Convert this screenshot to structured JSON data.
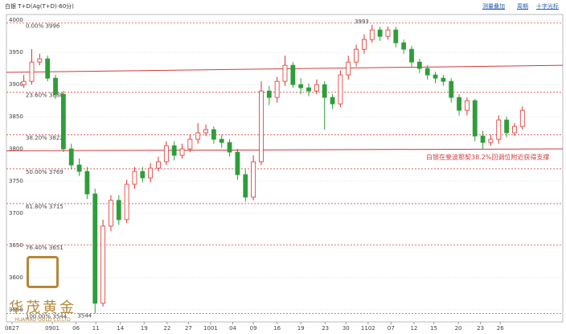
{
  "header": {
    "title": "白银 T+D(Ag(T+D)-60分)",
    "links": [
      "测量叠加",
      "周期",
      "十字光标"
    ]
  },
  "logo": {
    "name": "华茂黄金",
    "subtitle": "HUAMAO GOLD CO.LTD"
  },
  "chart_data": {
    "type": "candlestick",
    "up_color": "#e0312c",
    "down_color": "#2e9e3a",
    "x": [
      0,
      1,
      2,
      3,
      4,
      5,
      6,
      7,
      8,
      9,
      10,
      11,
      12,
      13,
      14,
      15,
      16,
      17,
      18,
      19,
      20,
      21,
      22,
      23,
      24,
      25,
      26,
      27,
      28,
      29,
      30,
      31,
      32,
      33,
      34,
      35,
      36,
      37,
      38,
      39,
      40,
      41,
      42,
      43,
      44,
      45,
      46,
      47,
      48,
      49,
      50,
      51,
      52,
      53,
      54,
      55,
      56,
      57,
      58,
      59,
      60,
      61,
      62,
      63
    ],
    "open": [
      3900,
      3905,
      3935,
      3940,
      3910,
      3885,
      3800,
      3775,
      3765,
      3730,
      3560,
      3680,
      3720,
      3690,
      3745,
      3765,
      3755,
      3770,
      3780,
      3805,
      3790,
      3800,
      3815,
      3825,
      3830,
      3815,
      3810,
      3795,
      3760,
      3725,
      3780,
      3890,
      3880,
      3905,
      3930,
      3900,
      3895,
      3890,
      3900,
      3880,
      3870,
      3915,
      3935,
      3955,
      3970,
      3985,
      3975,
      3985,
      3965,
      3955,
      3935,
      3925,
      3915,
      3910,
      3905,
      3880,
      3860,
      3875,
      3820,
      3810,
      3815,
      3845,
      3825,
      3835
    ],
    "high": [
      3915,
      3955,
      3948,
      3945,
      3915,
      3890,
      3808,
      3785,
      3772,
      3738,
      3690,
      3728,
      3728,
      3752,
      3772,
      3772,
      3778,
      3788,
      3812,
      3812,
      3808,
      3822,
      3840,
      3838,
      3835,
      3822,
      3815,
      3800,
      3768,
      3790,
      3905,
      3898,
      3912,
      3945,
      3935,
      3910,
      3902,
      3908,
      3905,
      3885,
      3922,
      3945,
      3962,
      3978,
      3993,
      3990,
      3990,
      3990,
      3970,
      3960,
      3940,
      3930,
      3920,
      3915,
      3910,
      3885,
      3880,
      3878,
      3828,
      3822,
      3852,
      3850,
      3840,
      3866
    ],
    "low": [
      3895,
      3900,
      3930,
      3905,
      3878,
      3795,
      3768,
      3758,
      3722,
      3544,
      3555,
      3672,
      3682,
      3685,
      3738,
      3748,
      3748,
      3765,
      3775,
      3782,
      3785,
      3795,
      3808,
      3820,
      3808,
      3802,
      3788,
      3752,
      3718,
      3720,
      3775,
      3868,
      3872,
      3898,
      3895,
      3885,
      3882,
      3885,
      3830,
      3862,
      3865,
      3908,
      3928,
      3948,
      3965,
      3968,
      3970,
      3958,
      3948,
      3928,
      3918,
      3908,
      3902,
      3898,
      3872,
      3852,
      3852,
      3812,
      3800,
      3805,
      3808,
      3818,
      3820,
      3830
    ],
    "close": [
      3905,
      3935,
      3940,
      3910,
      3885,
      3800,
      3775,
      3765,
      3730,
      3560,
      3680,
      3720,
      3690,
      3745,
      3765,
      3755,
      3770,
      3780,
      3805,
      3790,
      3800,
      3815,
      3825,
      3830,
      3815,
      3810,
      3795,
      3760,
      3725,
      3780,
      3890,
      3880,
      3905,
      3930,
      3900,
      3895,
      3890,
      3900,
      3880,
      3870,
      3915,
      3935,
      3955,
      3970,
      3985,
      3975,
      3985,
      3965,
      3955,
      3935,
      3925,
      3915,
      3910,
      3905,
      3880,
      3860,
      3875,
      3820,
      3810,
      3815,
      3845,
      3825,
      3835,
      3860
    ],
    "xlim": [
      -2.2,
      68.1
    ],
    "ylim": [
      3531,
      4009
    ],
    "xticks": [
      {
        "value": -1.5,
        "label": "0827"
      },
      {
        "value": 3.6,
        "label": "0901"
      },
      {
        "value": 6.6,
        "label": "06"
      },
      {
        "value": 9.1,
        "label": "11"
      },
      {
        "value": 12.2,
        "label": "14"
      },
      {
        "value": 15.2,
        "label": "19"
      },
      {
        "value": 18.1,
        "label": "22"
      },
      {
        "value": 20.8,
        "label": "27"
      },
      {
        "value": 23.6,
        "label": "1001"
      },
      {
        "value": 26.4,
        "label": "04"
      },
      {
        "value": 29,
        "label": "09"
      },
      {
        "value": 32,
        "label": "16"
      },
      {
        "value": 35,
        "label": "19"
      },
      {
        "value": 38.1,
        "label": "23"
      },
      {
        "value": 40.7,
        "label": "30"
      },
      {
        "value": 43.5,
        "label": "1102"
      },
      {
        "value": 46.4,
        "label": "07"
      },
      {
        "value": 49.3,
        "label": "12"
      },
      {
        "value": 51.8,
        "label": "15"
      },
      {
        "value": 54.9,
        "label": "20"
      },
      {
        "value": 57.7,
        "label": "23"
      },
      {
        "value": 60.2,
        "label": "26"
      }
    ],
    "yticks": [
      3550,
      3600,
      3650,
      3700,
      3750,
      3800,
      3850,
      3900,
      3950,
      4000
    ],
    "grid": true,
    "fib_levels": [
      {
        "label": "0.00% 3996",
        "value": 3996
      },
      {
        "label": "23.60% 3888",
        "value": 3888
      },
      {
        "label": "38.20% 3822",
        "value": 3822
      },
      {
        "label": "50.00% 3769",
        "value": 3769
      },
      {
        "label": "61.80% 3715",
        "value": 3715
      },
      {
        "label": "76.40% 3651",
        "value": 3651
      },
      {
        "label": "100.00% 3544",
        "value": 3544
      }
    ],
    "fib_color": "#d9534f",
    "trend_lines": [
      {
        "values": [
          3919,
          3930
        ]
      },
      {
        "values": [
          3797,
          3800
        ]
      }
    ],
    "trend_color": "#d43a3a",
    "annotation": "白银在斐波那契38.2%回调位附近获得支撑"
  }
}
